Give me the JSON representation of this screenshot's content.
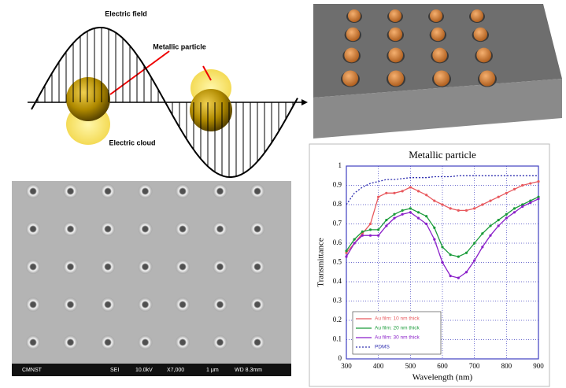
{
  "wave_diagram": {
    "labels": {
      "field": "Electric field",
      "particle": "Metallic particle",
      "cloud": "Electric cloud"
    }
  },
  "sem_image": {
    "caption": [
      "CMNST",
      "SEI",
      "10.0kV",
      "X7,000",
      "1 μm",
      "WD 8.3mm"
    ]
  },
  "chart_data": {
    "type": "line",
    "title": "Metallic particle",
    "x_label": "Wavelength (nm)",
    "y_label": "Transmittance",
    "x": [
      300,
      325,
      350,
      375,
      400,
      425,
      450,
      475,
      500,
      525,
      550,
      575,
      600,
      625,
      650,
      675,
      700,
      725,
      750,
      775,
      800,
      825,
      850,
      875,
      900
    ],
    "series": [
      {
        "name": "Au film: 10 nm thick",
        "color": "#e8595e",
        "linestyle": "solid",
        "values": [
          0.55,
          0.6,
          0.65,
          0.7,
          0.84,
          0.86,
          0.86,
          0.87,
          0.89,
          0.87,
          0.85,
          0.82,
          0.8,
          0.78,
          0.77,
          0.77,
          0.78,
          0.8,
          0.82,
          0.84,
          0.86,
          0.88,
          0.9,
          0.91,
          0.92
        ]
      },
      {
        "name": "Au film: 20 nm thick",
        "color": "#1a9b3a",
        "linestyle": "solid",
        "values": [
          0.56,
          0.62,
          0.66,
          0.67,
          0.67,
          0.72,
          0.75,
          0.77,
          0.78,
          0.76,
          0.74,
          0.68,
          0.58,
          0.54,
          0.53,
          0.55,
          0.6,
          0.65,
          0.69,
          0.72,
          0.75,
          0.78,
          0.8,
          0.82,
          0.84
        ]
      },
      {
        "name": "Au film: 30 nm thick",
        "color": "#8a1fc9",
        "linestyle": "solid",
        "values": [
          0.53,
          0.6,
          0.64,
          0.64,
          0.64,
          0.69,
          0.73,
          0.75,
          0.76,
          0.73,
          0.7,
          0.62,
          0.5,
          0.43,
          0.42,
          0.45,
          0.51,
          0.58,
          0.64,
          0.69,
          0.73,
          0.76,
          0.79,
          0.81,
          0.83
        ]
      },
      {
        "name": "PDMS",
        "color": "#3030b0",
        "linestyle": "dotted",
        "values": [
          0.8,
          0.86,
          0.89,
          0.91,
          0.92,
          0.93,
          0.93,
          0.935,
          0.94,
          0.94,
          0.94,
          0.945,
          0.945,
          0.945,
          0.95,
          0.95,
          0.95,
          0.95,
          0.95,
          0.95,
          0.95,
          0.95,
          0.95,
          0.95,
          0.95
        ]
      }
    ],
    "xlim": [
      300,
      900
    ],
    "xticks": [
      300,
      400,
      500,
      600,
      700,
      800,
      900
    ],
    "ylim": [
      0,
      1
    ],
    "yticks": [
      0,
      0.1,
      0.2,
      0.3,
      0.4,
      0.5,
      0.6,
      0.7,
      0.8,
      0.9,
      1
    ],
    "grid": true,
    "legend": "lower left"
  }
}
